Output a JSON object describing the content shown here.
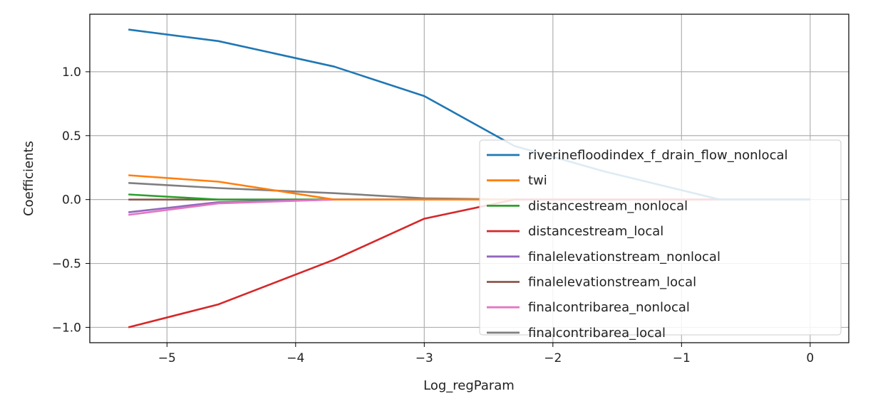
{
  "chart_data": {
    "type": "line",
    "title": "",
    "xlabel": "Log_regParam",
    "ylabel": "Coefficients",
    "xlim": [
      -5.6,
      0.3
    ],
    "ylim": [
      -1.12,
      1.45
    ],
    "grid": true,
    "legend_position": "bottom-right",
    "x_ticks": [
      -5,
      -4,
      -3,
      -2,
      -1,
      0
    ],
    "x_tick_labels": [
      "−5",
      "−4",
      "−3",
      "−2",
      "−1",
      "0"
    ],
    "y_ticks": [
      -1.0,
      -0.5,
      0.0,
      0.5,
      1.0
    ],
    "y_tick_labels": [
      "−1.0",
      "−0.5",
      "0.0",
      "0.5",
      "1.0"
    ],
    "x": [
      -5.3,
      -4.6,
      -3.7,
      -3.0,
      -2.3,
      -1.6,
      -0.7,
      0.0
    ],
    "series": [
      {
        "name": "riverinefloodindex_f_drain_flow_nonlocal",
        "color": "#1f77b4",
        "values": [
          1.33,
          1.24,
          1.04,
          0.81,
          0.42,
          0.22,
          0.0,
          0.0
        ]
      },
      {
        "name": "twi",
        "color": "#ff7f0e",
        "values": [
          0.19,
          0.14,
          0.0,
          0.0,
          0.0,
          0.0,
          0.0,
          0.0
        ]
      },
      {
        "name": "distancestream_nonlocal",
        "color": "#2ca02c",
        "values": [
          0.04,
          0.0,
          0.0,
          0.0,
          0.0,
          0.0,
          0.0,
          0.0
        ]
      },
      {
        "name": "distancestream_local",
        "color": "#d62728",
        "values": [
          -1.0,
          -0.82,
          -0.47,
          -0.15,
          0.0,
          0.0,
          0.0,
          0.0
        ]
      },
      {
        "name": "finalelevationstream_nonlocal",
        "color": "#9467bd",
        "values": [
          -0.1,
          -0.02,
          0.0,
          0.0,
          0.0,
          0.0,
          0.0,
          0.0
        ]
      },
      {
        "name": "finalelevationstream_local",
        "color": "#8c564b",
        "values": [
          0.0,
          0.0,
          0.0,
          0.0,
          0.0,
          0.0,
          0.0,
          0.0
        ]
      },
      {
        "name": "finalcontribarea_nonlocal",
        "color": "#e377c2",
        "values": [
          -0.12,
          -0.03,
          0.0,
          0.0,
          0.0,
          0.0,
          0.0,
          0.0
        ]
      },
      {
        "name": "finalcontribarea_local",
        "color": "#7f7f7f",
        "values": [
          0.13,
          0.09,
          0.05,
          0.01,
          0.0,
          0.0,
          0.0,
          0.0
        ]
      }
    ]
  }
}
